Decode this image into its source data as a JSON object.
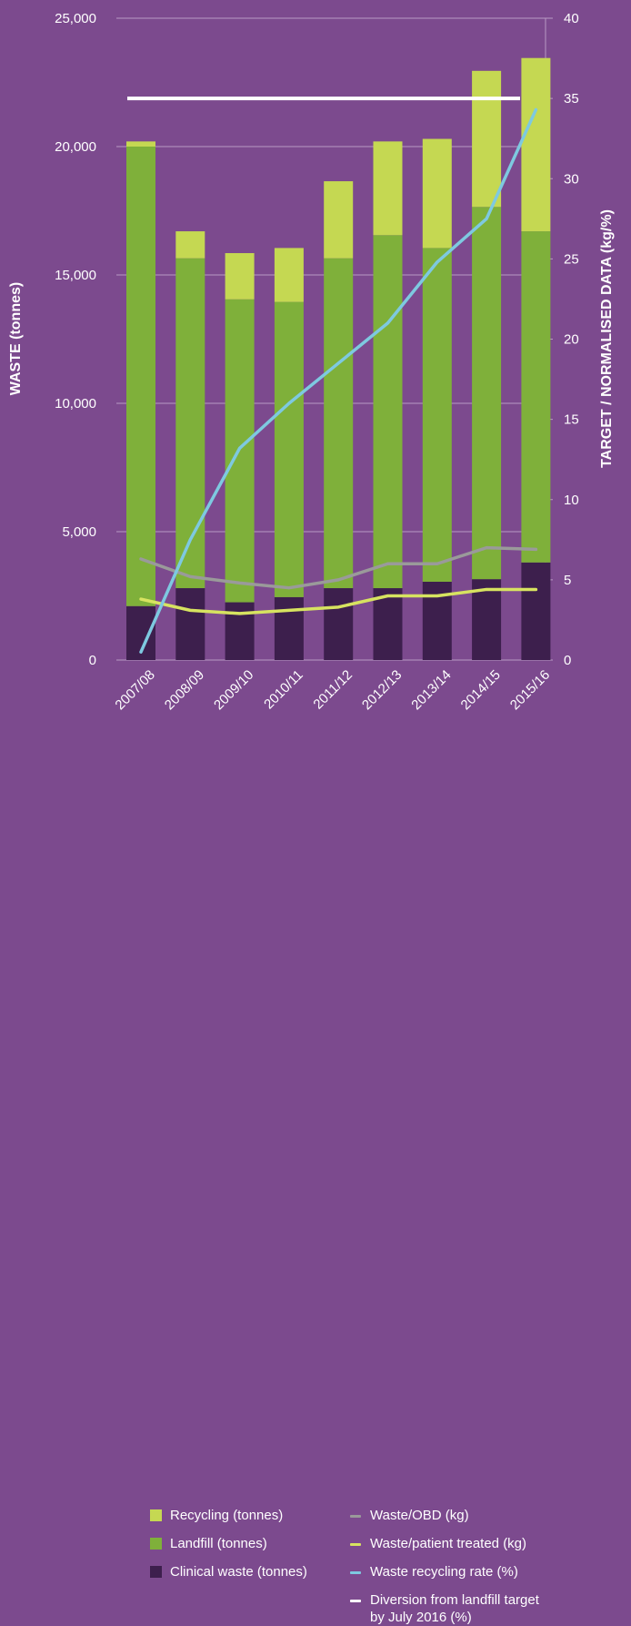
{
  "colors": {
    "background": "#7c4a8e",
    "recycling": "#c5d852",
    "landfill": "#7fb03a",
    "clinical": "#3d1f4d",
    "waste_obd": "#9a9a9a",
    "waste_patient": "#d7e360",
    "recycling_rate": "#7ec9e0",
    "target": "#ffffff",
    "grid": "#b99ac4"
  },
  "chart_data": {
    "type": "bar",
    "stacked": true,
    "categories": [
      "2007/08",
      "2008/09",
      "2009/10",
      "2010/11",
      "2011/12",
      "2012/13",
      "2013/14",
      "2014/15",
      "2015/16"
    ],
    "ylabel": "WASTE (tonnes)",
    "y2label": "TARGET / NORMALISED DATA (kg/%)",
    "ylim": [
      0,
      25000
    ],
    "y2lim": [
      0,
      40
    ],
    "yticks": [
      "0",
      "5,000",
      "10,000",
      "15,000",
      "20,000",
      "25,000"
    ],
    "y2ticks": [
      "0",
      "5",
      "10",
      "15",
      "20",
      "25",
      "30",
      "35",
      "40"
    ],
    "bar_series": [
      {
        "name": "Clinical waste (tonnes)",
        "values": [
          2100,
          2800,
          2250,
          2450,
          2800,
          2800,
          3050,
          3150,
          3800
        ]
      },
      {
        "name": "Landfill (tonnes)",
        "values": [
          17900,
          12850,
          11800,
          11500,
          12850,
          13750,
          13000,
          14500,
          12900
        ]
      },
      {
        "name": "Recycling (tonnes)",
        "values": [
          200,
          1050,
          1800,
          2100,
          3000,
          3650,
          4250,
          5300,
          6750
        ]
      }
    ],
    "line_series": [
      {
        "name": "Waste/OBD (kg)",
        "values": [
          6.3,
          5.2,
          4.8,
          4.5,
          5.0,
          6.0,
          6.0,
          7.0,
          6.9
        ]
      },
      {
        "name": "Waste/patient treated (kg)",
        "values": [
          3.8,
          3.1,
          2.9,
          3.1,
          3.3,
          4.0,
          4.0,
          4.4,
          4.4
        ]
      },
      {
        "name": "Waste recycling rate (%)",
        "values": [
          0.5,
          7.5,
          13.2,
          16.0,
          18.5,
          21.0,
          24.8,
          27.5,
          34.3
        ]
      }
    ],
    "target_series": {
      "name": "Diversion from landfill target by July 2016 (%)",
      "value": 35
    },
    "grid": true,
    "legend_position": "bottom"
  },
  "legend": {
    "recycling": "Recycling (tonnes)",
    "landfill": "Landfill (tonnes)",
    "clinical": "Clinical waste (tonnes)",
    "waste_obd": "Waste/OBD (kg)",
    "waste_patient": "Waste/patient treated (kg)",
    "recycling_rate": "Waste recycling rate (%)",
    "target_line1": "Diversion from landfill target",
    "target_line2": "by July 2016 (%)"
  }
}
